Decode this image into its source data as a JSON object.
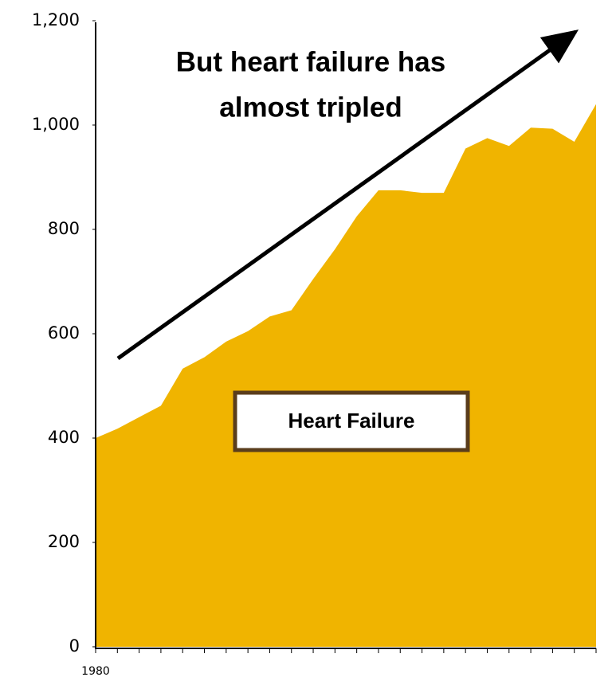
{
  "chart_data": {
    "type": "area",
    "annotation": [
      "But heart failure has",
      "almost tripled"
    ],
    "categories": [
      "1980",
      null,
      null,
      null,
      null,
      null,
      null,
      null,
      null,
      null,
      null,
      null,
      null,
      null,
      null,
      null,
      null,
      null,
      null,
      null,
      null,
      null,
      null,
      null
    ],
    "series": [
      {
        "name": "Heart Failure",
        "color": "#f0b400",
        "values": [
          400,
          418,
          440,
          462,
          533,
          555,
          585,
          605,
          633,
          645,
          705,
          762,
          825,
          875,
          875,
          870,
          870,
          955,
          975,
          960,
          995,
          993,
          968,
          1040
        ]
      }
    ],
    "ylim": [
      0,
      1200
    ],
    "yticks": [
      0,
      200,
      400,
      600,
      800,
      {
        "value": 1000,
        "label": "1,000"
      },
      {
        "value": 1200,
        "label": "1,200"
      }
    ],
    "grid": false
  }
}
